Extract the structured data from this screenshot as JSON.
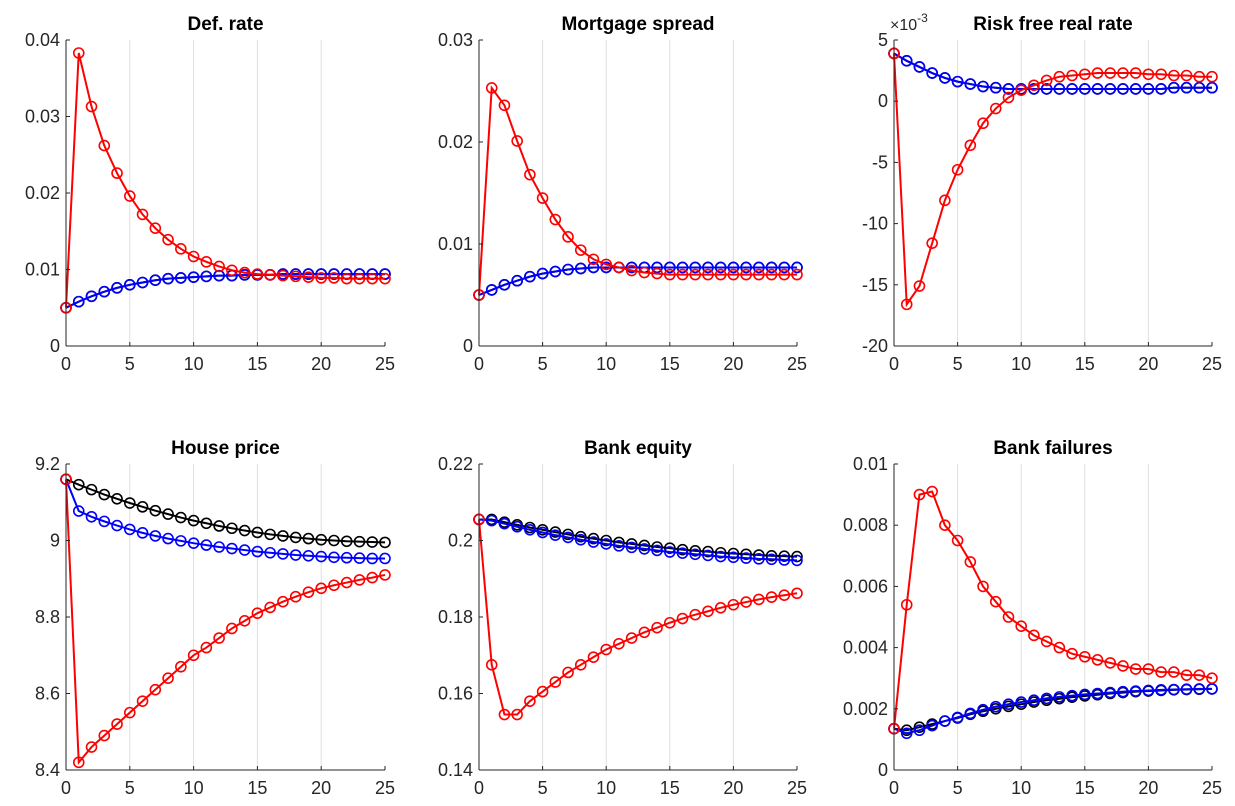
{
  "chart_data": [
    {
      "type": "line",
      "title": "Def. rate",
      "xlim": [
        0,
        25
      ],
      "ylim": [
        0,
        0.04
      ],
      "xticks": [
        "0",
        "5",
        "10",
        "15",
        "20",
        "25"
      ],
      "yticks": [
        "0",
        "0.01",
        "0.02",
        "0.03",
        "0.04"
      ],
      "grid": "vertical",
      "x": [
        0,
        1,
        2,
        3,
        4,
        5,
        6,
        7,
        8,
        9,
        10,
        11,
        12,
        13,
        14,
        15,
        16,
        17,
        18,
        19,
        20,
        21,
        22,
        23,
        24,
        25
      ],
      "series": [
        {
          "color": "#000000",
          "values": [
            0.005,
            0.0058,
            0.0065,
            0.0071,
            0.0076,
            0.008,
            0.0083,
            0.0086,
            0.0088,
            0.0089,
            0.009,
            0.0091,
            0.0092,
            0.0092,
            0.0093,
            0.0093,
            0.0093,
            0.0094,
            0.0094,
            0.0094,
            0.0094,
            0.0094,
            0.0094,
            0.0094,
            0.0094,
            0.0094
          ]
        },
        {
          "color": "#0000ff",
          "values": [
            0.005,
            0.0058,
            0.0065,
            0.0071,
            0.0076,
            0.008,
            0.0083,
            0.0086,
            0.0088,
            0.0089,
            0.009,
            0.0091,
            0.0092,
            0.0092,
            0.0093,
            0.0093,
            0.0093,
            0.0094,
            0.0094,
            0.0094,
            0.0094,
            0.0094,
            0.0094,
            0.0094,
            0.0094,
            0.0094
          ]
        },
        {
          "color": "#ff0000",
          "values": [
            0.005,
            0.0383,
            0.0313,
            0.0262,
            0.0226,
            0.0196,
            0.0172,
            0.0154,
            0.0139,
            0.0127,
            0.0117,
            0.011,
            0.0104,
            0.0099,
            0.0096,
            0.0094,
            0.0093,
            0.0092,
            0.0091,
            0.009,
            0.0089,
            0.0089,
            0.0088,
            0.0088,
            0.0088,
            0.0088
          ]
        }
      ]
    },
    {
      "type": "line",
      "title": "Mortgage spread",
      "xlim": [
        0,
        25
      ],
      "ylim": [
        0,
        0.03
      ],
      "xticks": [
        "0",
        "5",
        "10",
        "15",
        "20",
        "25"
      ],
      "yticks": [
        "0",
        "0.01",
        "0.02",
        "0.03"
      ],
      "grid": "vertical",
      "x": [
        0,
        1,
        2,
        3,
        4,
        5,
        6,
        7,
        8,
        9,
        10,
        11,
        12,
        13,
        14,
        15,
        16,
        17,
        18,
        19,
        20,
        21,
        22,
        23,
        24,
        25
      ],
      "series": [
        {
          "color": "#000000",
          "values": [
            0.005,
            0.0055,
            0.006,
            0.0064,
            0.0068,
            0.0071,
            0.0073,
            0.0075,
            0.0076,
            0.0077,
            0.0077,
            0.0077,
            0.0077,
            0.0077,
            0.0077,
            0.0077,
            0.0077,
            0.0077,
            0.0077,
            0.0077,
            0.0077,
            0.0077,
            0.0077,
            0.0077,
            0.0077,
            0.0077
          ]
        },
        {
          "color": "#0000ff",
          "values": [
            0.005,
            0.0055,
            0.006,
            0.0064,
            0.0068,
            0.0071,
            0.0073,
            0.0075,
            0.0076,
            0.0077,
            0.0077,
            0.0077,
            0.0077,
            0.0077,
            0.0077,
            0.0077,
            0.0077,
            0.0077,
            0.0077,
            0.0077,
            0.0077,
            0.0077,
            0.0077,
            0.0077,
            0.0077,
            0.0077
          ]
        },
        {
          "color": "#ff0000",
          "values": [
            0.005,
            0.0253,
            0.0236,
            0.0201,
            0.0168,
            0.0145,
            0.0124,
            0.0107,
            0.0094,
            0.0085,
            0.008,
            0.0077,
            0.0074,
            0.0072,
            0.0071,
            0.007,
            0.007,
            0.007,
            0.007,
            0.007,
            0.007,
            0.007,
            0.007,
            0.007,
            0.007,
            0.007
          ]
        }
      ]
    },
    {
      "type": "line",
      "title": "Risk free real rate",
      "exponent_label": "×10",
      "exponent_power": "-3",
      "xlim": [
        0,
        25
      ],
      "ylim": [
        -20,
        5
      ],
      "xticks": [
        "0",
        "5",
        "10",
        "15",
        "20",
        "25"
      ],
      "yticks": [
        "-20",
        "-15",
        "-10",
        "-5",
        "0",
        "5"
      ],
      "grid": "vertical",
      "x": [
        0,
        1,
        2,
        3,
        4,
        5,
        6,
        7,
        8,
        9,
        10,
        11,
        12,
        13,
        14,
        15,
        16,
        17,
        18,
        19,
        20,
        21,
        22,
        23,
        24,
        25
      ],
      "series": [
        {
          "color": "#000000",
          "values": [
            3.9,
            3.3,
            2.8,
            2.3,
            1.9,
            1.6,
            1.4,
            1.2,
            1.1,
            1.0,
            1.0,
            1.0,
            1.0,
            1.0,
            1.0,
            1.0,
            1.0,
            1.0,
            1.0,
            1.0,
            1.0,
            1.0,
            1.1,
            1.1,
            1.1,
            1.1
          ]
        },
        {
          "color": "#0000ff",
          "values": [
            3.9,
            3.3,
            2.8,
            2.3,
            1.9,
            1.6,
            1.4,
            1.2,
            1.1,
            1.0,
            1.0,
            1.0,
            1.0,
            1.0,
            1.0,
            1.0,
            1.0,
            1.0,
            1.0,
            1.0,
            1.0,
            1.0,
            1.1,
            1.1,
            1.1,
            1.1
          ]
        },
        {
          "color": "#ff0000",
          "values": [
            3.9,
            -16.6,
            -15.1,
            -11.6,
            -8.1,
            -5.6,
            -3.6,
            -1.8,
            -0.6,
            0.3,
            0.9,
            1.3,
            1.7,
            2.0,
            2.1,
            2.2,
            2.3,
            2.3,
            2.3,
            2.3,
            2.2,
            2.2,
            2.1,
            2.1,
            2.0,
            2.0
          ]
        }
      ]
    },
    {
      "type": "line",
      "title": "House price",
      "xlim": [
        0,
        25
      ],
      "ylim": [
        8.4,
        9.2
      ],
      "xticks": [
        "0",
        "5",
        "10",
        "15",
        "20",
        "25"
      ],
      "yticks": [
        "8.4",
        "8.6",
        "8.8",
        "9",
        "9.2"
      ],
      "grid": "vertical",
      "x": [
        0,
        1,
        2,
        3,
        4,
        5,
        6,
        7,
        8,
        9,
        10,
        11,
        12,
        13,
        14,
        15,
        16,
        17,
        18,
        19,
        20,
        21,
        22,
        23,
        24,
        25
      ],
      "series": [
        {
          "color": "#000000",
          "values": [
            9.16,
            9.146,
            9.133,
            9.12,
            9.109,
            9.098,
            9.088,
            9.078,
            9.069,
            9.06,
            9.052,
            9.045,
            9.038,
            9.032,
            9.026,
            9.021,
            9.016,
            9.012,
            9.008,
            9.005,
            9.002,
            9.0,
            8.998,
            8.997,
            8.996,
            8.995
          ]
        },
        {
          "color": "#0000ff",
          "values": [
            9.16,
            9.077,
            9.062,
            9.05,
            9.039,
            9.029,
            9.02,
            9.012,
            9.005,
            8.999,
            8.993,
            8.988,
            8.983,
            8.979,
            8.975,
            8.971,
            8.968,
            8.965,
            8.962,
            8.96,
            8.958,
            8.956,
            8.955,
            8.954,
            8.953,
            8.953
          ]
        },
        {
          "color": "#ff0000",
          "values": [
            9.16,
            8.42,
            8.46,
            8.49,
            8.52,
            8.55,
            8.58,
            8.61,
            8.64,
            8.67,
            8.7,
            8.72,
            8.745,
            8.77,
            8.79,
            8.81,
            8.825,
            8.84,
            8.853,
            8.865,
            8.875,
            8.883,
            8.89,
            8.897,
            8.903,
            8.91
          ]
        }
      ]
    },
    {
      "type": "line",
      "title": "Bank equity",
      "xlim": [
        0,
        25
      ],
      "ylim": [
        0.14,
        0.22
      ],
      "xticks": [
        "0",
        "5",
        "10",
        "15",
        "20",
        "25"
      ],
      "yticks": [
        "0.14",
        "0.16",
        "0.18",
        "0.2",
        "0.22"
      ],
      "grid": "vertical",
      "x": [
        0,
        1,
        2,
        3,
        4,
        5,
        6,
        7,
        8,
        9,
        10,
        11,
        12,
        13,
        14,
        15,
        16,
        17,
        18,
        19,
        20,
        21,
        22,
        23,
        24,
        25
      ],
      "series": [
        {
          "color": "#000000",
          "values": [
            0.2055,
            0.2055,
            0.2048,
            0.2041,
            0.2034,
            0.2028,
            0.2022,
            0.2016,
            0.201,
            0.2005,
            0.2,
            0.1995,
            0.1991,
            0.1987,
            0.1983,
            0.198,
            0.1976,
            0.1973,
            0.1971,
            0.1968,
            0.1966,
            0.1964,
            0.1962,
            0.196,
            0.1959,
            0.1958
          ]
        },
        {
          "color": "#0000ff",
          "values": [
            0.2055,
            0.2052,
            0.2044,
            0.2036,
            0.2028,
            0.2021,
            0.2014,
            0.2008,
            0.2002,
            0.1996,
            0.1991,
            0.1986,
            0.1982,
            0.1978,
            0.1974,
            0.197,
            0.1967,
            0.1964,
            0.1961,
            0.1958,
            0.1956,
            0.1954,
            0.1952,
            0.1951,
            0.1949,
            0.1948
          ]
        },
        {
          "color": "#ff0000",
          "values": [
            0.2055,
            0.1675,
            0.1545,
            0.1545,
            0.158,
            0.1605,
            0.163,
            0.1655,
            0.1675,
            0.1695,
            0.1715,
            0.173,
            0.1745,
            0.176,
            0.1772,
            0.1785,
            0.1796,
            0.1806,
            0.1815,
            0.1824,
            0.1832,
            0.1839,
            0.1846,
            0.1852,
            0.1857,
            0.1862
          ]
        }
      ]
    },
    {
      "type": "line",
      "title": "Bank failures",
      "xlim": [
        0,
        25
      ],
      "ylim": [
        0,
        0.01
      ],
      "xticks": [
        "0",
        "5",
        "10",
        "15",
        "20",
        "25"
      ],
      "yticks": [
        "0",
        "0.002",
        "0.004",
        "0.006",
        "0.008",
        "0.01"
      ],
      "grid": "vertical",
      "x": [
        0,
        1,
        2,
        3,
        4,
        5,
        6,
        7,
        8,
        9,
        10,
        11,
        12,
        13,
        14,
        15,
        16,
        17,
        18,
        19,
        20,
        21,
        22,
        23,
        24,
        25
      ],
      "series": [
        {
          "color": "#000000",
          "values": [
            0.00135,
            0.0013,
            0.0014,
            0.0015,
            0.0016,
            0.0017,
            0.00182,
            0.00192,
            0.002,
            0.00208,
            0.00215,
            0.00222,
            0.00228,
            0.00233,
            0.00238,
            0.00242,
            0.00246,
            0.0025,
            0.00253,
            0.00256,
            0.00258,
            0.0026,
            0.00262,
            0.00263,
            0.00264,
            0.00265
          ]
        },
        {
          "color": "#0000ff",
          "values": [
            0.00135,
            0.0012,
            0.0013,
            0.00145,
            0.0016,
            0.00172,
            0.00185,
            0.00197,
            0.00207,
            0.00215,
            0.00222,
            0.00228,
            0.00234,
            0.00239,
            0.00243,
            0.00247,
            0.0025,
            0.00253,
            0.00256,
            0.00258,
            0.0026,
            0.00262,
            0.00263,
            0.00264,
            0.00265,
            0.00265
          ]
        },
        {
          "color": "#ff0000",
          "values": [
            0.00135,
            0.0054,
            0.009,
            0.0091,
            0.008,
            0.0075,
            0.0068,
            0.006,
            0.0055,
            0.005,
            0.0047,
            0.0044,
            0.0042,
            0.004,
            0.0038,
            0.0037,
            0.0036,
            0.0035,
            0.0034,
            0.0033,
            0.0033,
            0.0032,
            0.0032,
            0.0031,
            0.0031,
            0.003
          ]
        }
      ]
    }
  ]
}
